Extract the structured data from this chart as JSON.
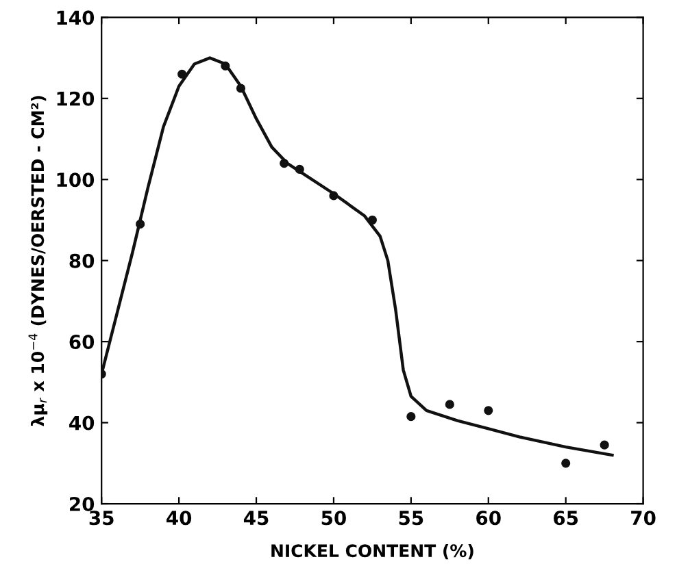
{
  "chart_data": {
    "type": "scatter",
    "xlabel": "NICKEL CONTENT (%)",
    "ylabel": "λμ$_{r}$ x 10$^{−4}$ (DYNES/OERSTED - CM²)",
    "xlim": [
      35,
      70
    ],
    "xticks": [
      35,
      40,
      45,
      50,
      55,
      60,
      65,
      70
    ],
    "ylim": [
      20,
      140
    ],
    "yticks": [
      20,
      40,
      60,
      80,
      100,
      120,
      140
    ],
    "grid": false,
    "series": [
      {
        "marker": "circle",
        "color": "#111111",
        "x": [
          35,
          37.5,
          40.2,
          43,
          44,
          46.8,
          47.8,
          50,
          52.5,
          55,
          57.5,
          60,
          65,
          67.5
        ],
        "values": [
          52,
          89,
          126,
          128,
          122.5,
          104,
          102.5,
          96,
          90,
          41.5,
          44.5,
          43,
          30,
          34.5
        ]
      },
      {
        "type": "line",
        "marker": "none",
        "color": "#111111",
        "line_style": "solid",
        "x": [
          35,
          36,
          37,
          38,
          39,
          40,
          41,
          42,
          43,
          44,
          45,
          46,
          47,
          48,
          50,
          52,
          53,
          53.5,
          54,
          54.5,
          55,
          56,
          58,
          60,
          62,
          65,
          68
        ],
        "values": [
          52,
          67,
          82,
          98,
          113,
          123,
          128.5,
          130,
          128.5,
          123,
          115,
          108,
          104,
          101.5,
          96.5,
          91,
          86,
          80,
          68,
          53,
          46.5,
          43,
          40.5,
          38.5,
          36.5,
          34,
          32
        ]
      }
    ]
  }
}
